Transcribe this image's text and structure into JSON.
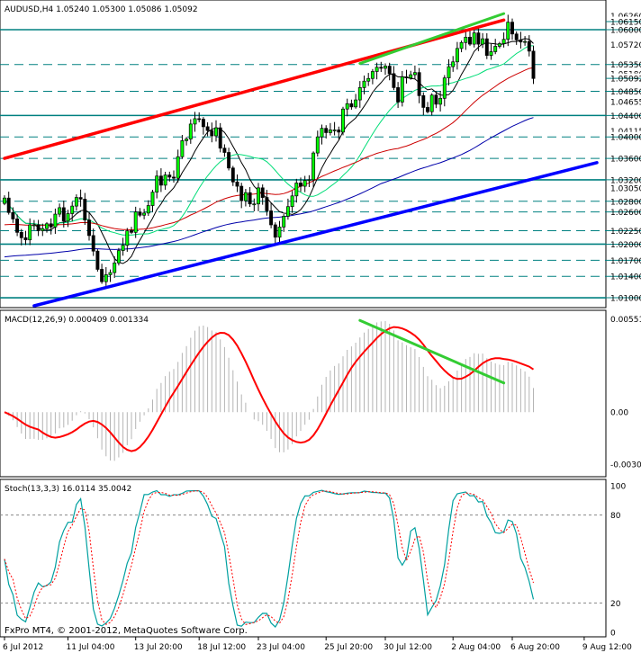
{
  "chart_data": [
    {
      "type": "candlestick",
      "title": "AUDUSD,H4  1.05240 1.05300 1.05086 1.05092",
      "ylim": [
        1.0085,
        1.0652
      ],
      "price_labels": [
        "1.06260",
        "1.06150",
        "1.06000",
        "1.05720",
        "1.05350",
        "1.05180",
        "1.05092",
        "1.04850",
        "1.04655",
        "1.04400",
        "1.04115",
        "1.04000",
        "1.03600",
        "1.03200",
        "1.03050",
        "1.02800",
        "1.02600",
        "1.02250",
        "1.02000",
        "1.01700",
        "1.01400",
        "1.01000"
      ],
      "highlight_labels": [
        "1.06150",
        "1.06000",
        "1.05350",
        "1.05092",
        "1.04850",
        "1.04400",
        "1.04000",
        "1.03600",
        "1.03200",
        "1.02800",
        "1.02600",
        "1.02250",
        "1.02000",
        "1.01700",
        "1.01400",
        "1.01000"
      ],
      "level_solid": [
        1.06,
        1.044,
        1.032,
        1.02,
        1.01
      ],
      "level_dashed": [
        1.0535,
        1.0485,
        1.04,
        1.036,
        1.028,
        1.026,
        1.0225,
        1.017,
        1.014
      ],
      "closes": [
        1.0286,
        1.0259,
        1.0247,
        1.0222,
        1.0212,
        1.0208,
        1.0236,
        1.0236,
        1.0225,
        1.0229,
        1.0238,
        1.0232,
        1.0256,
        1.0268,
        1.0243,
        1.0257,
        1.0271,
        1.0287,
        1.0284,
        1.0245,
        1.0216,
        1.0187,
        1.0153,
        1.013,
        1.0143,
        1.0147,
        1.0165,
        1.0188,
        1.0198,
        1.0225,
        1.0222,
        1.026,
        1.0254,
        1.0258,
        1.0272,
        1.0297,
        1.0327,
        1.031,
        1.0329,
        1.0325,
        1.0323,
        1.0363,
        1.0393,
        1.0396,
        1.0424,
        1.0434,
        1.0433,
        1.0419,
        1.0412,
        1.0402,
        1.0417,
        1.0379,
        1.0371,
        1.0342,
        1.0316,
        1.0308,
        1.0281,
        1.0296,
        1.0275,
        1.0275,
        1.0305,
        1.0287,
        1.0262,
        1.0236,
        1.0213,
        1.0232,
        1.0252,
        1.027,
        1.029,
        1.0314,
        1.0308,
        1.0319,
        1.032,
        1.037,
        1.04,
        1.0416,
        1.0408,
        1.0413,
        1.0413,
        1.0409,
        1.0452,
        1.0462,
        1.0456,
        1.0469,
        1.0492,
        1.0504,
        1.0509,
        1.0522,
        1.053,
        1.0528,
        1.0532,
        1.0518,
        1.0492,
        1.0465,
        1.0512,
        1.051,
        1.0516,
        1.052,
        1.0477,
        1.0455,
        1.0447,
        1.0478,
        1.0461,
        1.0472,
        1.051,
        1.0531,
        1.054,
        1.0565,
        1.0576,
        1.0586,
        1.0573,
        1.0594,
        1.0573,
        1.0583,
        1.0552,
        1.0559,
        1.0569,
        1.0574,
        1.0582,
        1.0614,
        1.0592,
        1.0581,
        1.0577,
        1.0578,
        1.056,
        1.0509
      ],
      "trendline_red": {
        "from": [
          0,
          1.036
        ],
        "to": [
          118,
          1.0618
        ]
      },
      "trendline_blue": {
        "from": [
          7,
          1.0085
        ],
        "to": [
          140,
          1.0352
        ]
      },
      "trendline_green": {
        "from": [
          84,
          1.0537
        ],
        "to": [
          118,
          1.063
        ]
      },
      "xlabels": [
        "6 Jul 2012",
        "11 Jul 04:00",
        "13 Jul 20:00",
        "18 Jul 12:00",
        "23 Jul 04:00",
        "25 Jul 20:00",
        "30 Jul 12:00",
        "2 Aug 04:00",
        "6 Aug 20:00",
        "9 Aug 12:00"
      ],
      "xlabel_index": [
        0,
        15,
        31,
        46,
        60,
        76,
        90,
        106,
        120,
        137
      ]
    },
    {
      "type": "macd",
      "title": "MACD(12,26,9) 0.000409 0.001334",
      "ylim": [
        -0.0037,
        0.0059
      ],
      "labels": [
        "0.00551",
        "0.00",
        "-0.00306"
      ],
      "label_values": [
        0.00551,
        0.0,
        -0.00306
      ],
      "trendline_green": {
        "from": [
          84,
          0.00541
        ],
        "to": [
          118,
          0.00172
        ]
      }
    },
    {
      "type": "stochastic",
      "title": "Stoch(13,3,3) 16.0114 35.0042",
      "ylim": [
        0,
        100
      ],
      "labels": [
        "100",
        "80",
        "20",
        "0"
      ],
      "label_values": [
        100,
        80,
        20,
        0
      ],
      "dashed_levels": [
        80,
        20
      ]
    }
  ],
  "footer": "FxPro MT4, © 2001-2012, MetaQuotes Software Corp.",
  "colors": {
    "bull": "#00ff00",
    "bear": "#000000",
    "level": "#008080",
    "trend_red": "#ff0000",
    "trend_blue": "#0000ff",
    "trend_green": "#33cc33",
    "ma_black": "#000000",
    "ma_green": "#00dd77",
    "ma_red": "#cc0000",
    "ma_blue": "#0000aa",
    "hist": "#b4b4b4",
    "signal": "#ff0000",
    "stoch_main": "#00a0a0",
    "stoch_signal": "#ff0000"
  }
}
